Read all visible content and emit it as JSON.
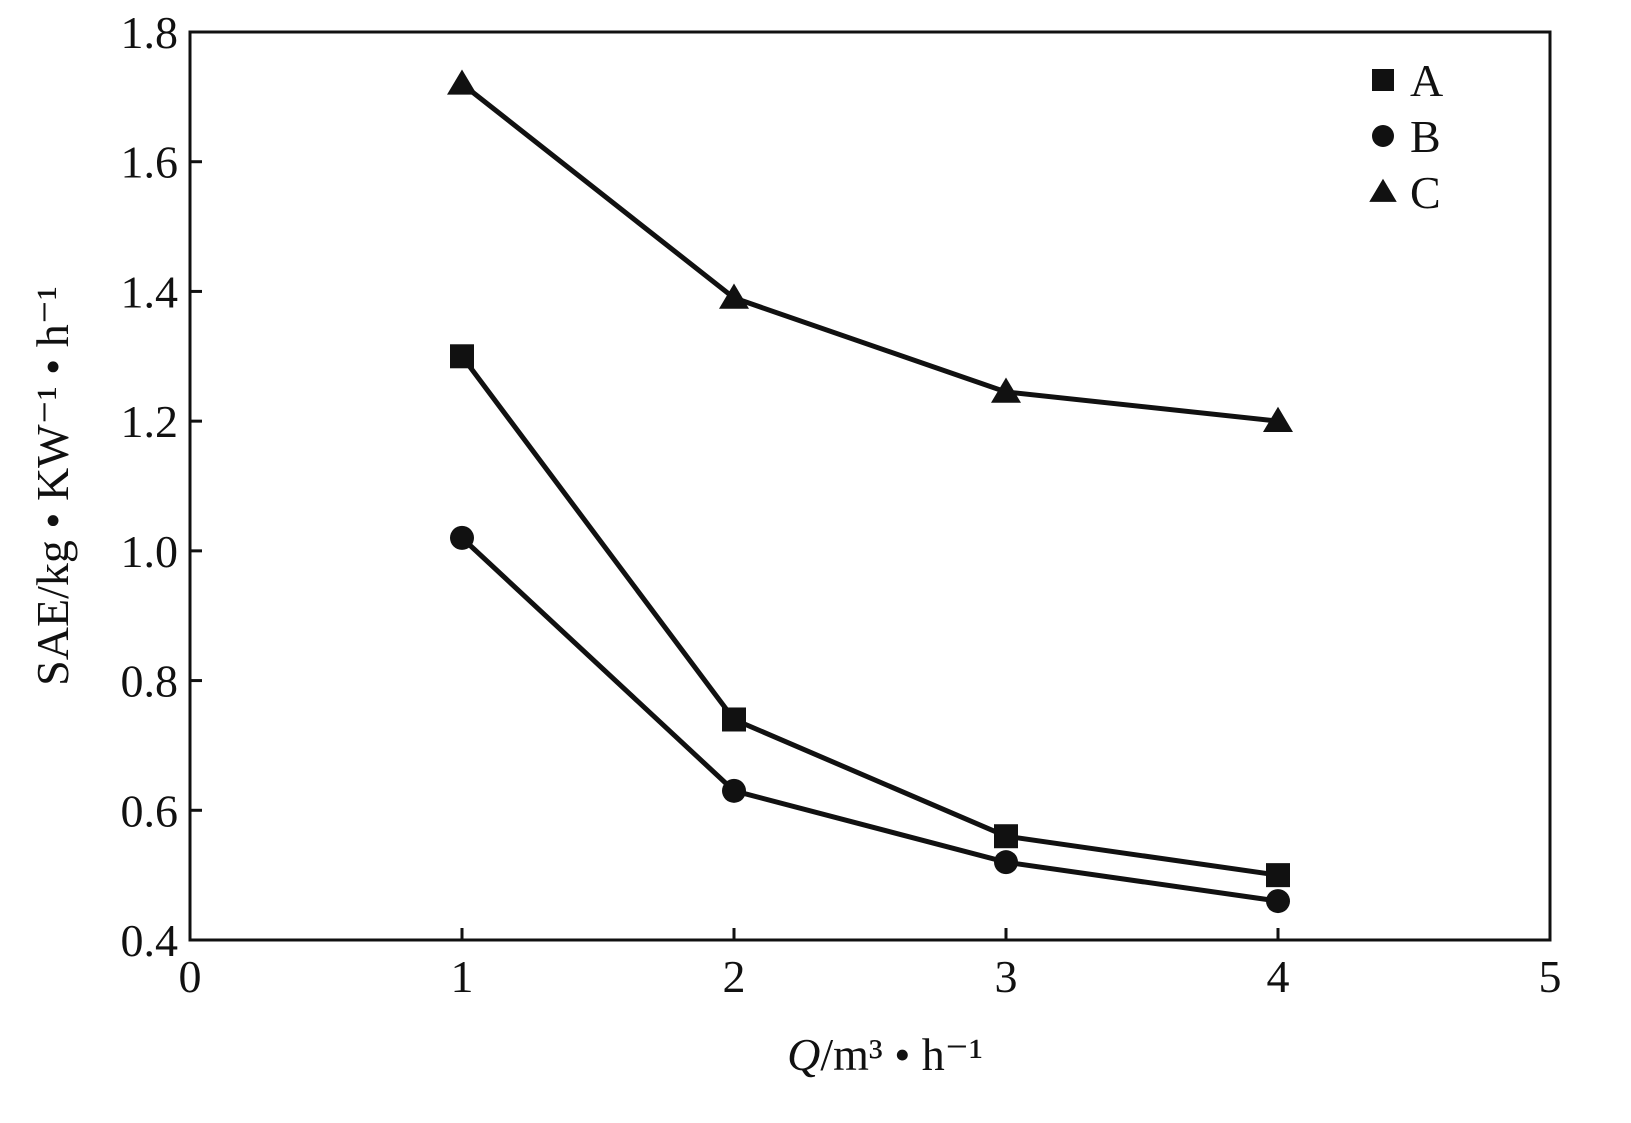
{
  "chart_data": {
    "type": "line",
    "title": "",
    "xlabel_italic": "Q",
    "xlabel_rest": "/m³ • h⁻¹",
    "ylabel": "SAE/kg • KW⁻¹ • h⁻¹",
    "xlim": [
      0,
      5
    ],
    "ylim": [
      0.4,
      1.8
    ],
    "xticks": [
      "0",
      "1",
      "2",
      "3",
      "4",
      "5"
    ],
    "yticks": [
      "0.4",
      "0.6",
      "0.8",
      "1.0",
      "1.2",
      "1.4",
      "1.6",
      "1.8"
    ],
    "grid": false,
    "legend_position": "top-right",
    "x": [
      1,
      2,
      3,
      4
    ],
    "series": [
      {
        "name": "A",
        "marker": "square",
        "color": "#111111",
        "values": [
          1.3,
          0.74,
          0.56,
          0.5
        ]
      },
      {
        "name": "B",
        "marker": "circle",
        "color": "#111111",
        "values": [
          1.02,
          0.63,
          0.52,
          0.46
        ]
      },
      {
        "name": "C",
        "marker": "triangle",
        "color": "#111111",
        "values": [
          1.72,
          1.39,
          1.245,
          1.2
        ]
      }
    ]
  }
}
